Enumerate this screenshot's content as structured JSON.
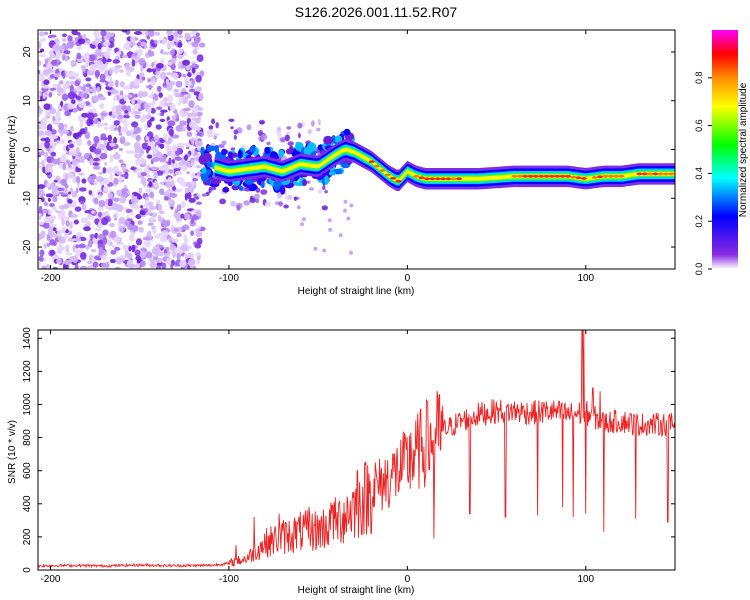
{
  "title": "S126.2026.001.11.52.R07",
  "chart_data": [
    {
      "type": "heatmap",
      "title": "S126.2026.001.11.52.R07",
      "xlabel": "Height of straight line (km)",
      "ylabel": "Frequency (Hz)",
      "xlim": [
        -207,
        150
      ],
      "ylim": [
        -24.5,
        24.5
      ],
      "xticks": [
        -200,
        -100,
        0,
        100
      ],
      "yticks": [
        -20,
        -10,
        0,
        10,
        20
      ],
      "colorbar": {
        "label": "Normalized spectral amplitude",
        "range": [
          0,
          1
        ],
        "ticks": [
          0.0,
          0.2,
          0.4,
          0.6,
          0.8
        ],
        "tick_labels": [
          "0.0",
          "0.2",
          "0.4",
          "0.6",
          "0.8"
        ],
        "colors": [
          "#ffffff",
          "#8a2be2",
          "#0000ff",
          "#00ffff",
          "#00ff00",
          "#ffff00",
          "#ff8c00",
          "#ff0000",
          "#ff00ff"
        ]
      },
      "noise_region": {
        "x_range": [
          -207,
          -115
        ],
        "y_range": [
          -24.5,
          24.5
        ]
      },
      "signal_track": [
        {
          "x": -115,
          "y": -3
        },
        {
          "x": -100,
          "y": -4.5
        },
        {
          "x": -90,
          "y": -4
        },
        {
          "x": -80,
          "y": -3.5
        },
        {
          "x": -70,
          "y": -4.5
        },
        {
          "x": -60,
          "y": -3
        },
        {
          "x": -50,
          "y": -3.5
        },
        {
          "x": -40,
          "y": -1
        },
        {
          "x": -35,
          "y": 0
        },
        {
          "x": -30,
          "y": -0.5
        },
        {
          "x": -20,
          "y": -2.5
        },
        {
          "x": -15,
          "y": -4
        },
        {
          "x": -10,
          "y": -5.5
        },
        {
          "x": -5,
          "y": -6.5
        },
        {
          "x": 0,
          "y": -4.5
        },
        {
          "x": 5,
          "y": -5.5
        },
        {
          "x": 10,
          "y": -6
        },
        {
          "x": 20,
          "y": -6
        },
        {
          "x": 40,
          "y": -6
        },
        {
          "x": 60,
          "y": -5.5
        },
        {
          "x": 80,
          "y": -5.5
        },
        {
          "x": 90,
          "y": -5.5
        },
        {
          "x": 100,
          "y": -6
        },
        {
          "x": 110,
          "y": -5.5
        },
        {
          "x": 120,
          "y": -5.5
        },
        {
          "x": 130,
          "y": -5
        },
        {
          "x": 150,
          "y": -5
        }
      ]
    },
    {
      "type": "line",
      "xlabel": "Height of straight line (km)",
      "ylabel": "SNR (10 * v/v)",
      "xlim": [
        -207,
        150
      ],
      "ylim": [
        0,
        1450
      ],
      "xticks": [
        -200,
        -100,
        0,
        100
      ],
      "yticks": [
        0,
        200,
        400,
        600,
        800,
        1000,
        1200,
        1400
      ],
      "series": [
        {
          "name": "SNR",
          "color": "#ee2222",
          "x": [
            -207,
            -190,
            -170,
            -150,
            -130,
            -110,
            -100,
            -90,
            -80,
            -70,
            -60,
            -50,
            -40,
            -30,
            -20,
            -10,
            0,
            10,
            20,
            30,
            40,
            50,
            60,
            70,
            80,
            90,
            100,
            110,
            120,
            130,
            140,
            150
          ],
          "y": [
            25,
            28,
            25,
            30,
            26,
            28,
            40,
            70,
            160,
            200,
            230,
            240,
            290,
            380,
            470,
            560,
            640,
            760,
            840,
            900,
            940,
            960,
            960,
            950,
            960,
            940,
            950,
            890,
            900,
            880,
            880,
            880
          ],
          "spikes": [
            {
              "x": -96,
              "y": 150
            },
            {
              "x": -86,
              "y": 320
            },
            {
              "x": -72,
              "y": 340
            },
            {
              "x": -55,
              "y": 380
            },
            {
              "x": -42,
              "y": 390
            },
            {
              "x": -28,
              "y": 600
            },
            {
              "x": -18,
              "y": 650
            },
            {
              "x": -8,
              "y": 700
            },
            {
              "x": 2,
              "y": 830
            },
            {
              "x": 11,
              "y": 1020
            },
            {
              "x": 98,
              "y": 1450
            },
            {
              "x": 99,
              "y": 1450
            },
            {
              "x": 104,
              "y": 1100
            },
            {
              "x": 108,
              "y": 1080
            }
          ],
          "dips": [
            {
              "x": 15,
              "y": 190
            },
            {
              "x": 35,
              "y": 340
            },
            {
              "x": 55,
              "y": 320
            },
            {
              "x": 73,
              "y": 330
            },
            {
              "x": 87,
              "y": 380
            },
            {
              "x": 93,
              "y": 320
            },
            {
              "x": 100,
              "y": 340
            },
            {
              "x": 110,
              "y": 230
            },
            {
              "x": 128,
              "y": 310
            },
            {
              "x": 146,
              "y": 290
            }
          ]
        }
      ]
    }
  ]
}
